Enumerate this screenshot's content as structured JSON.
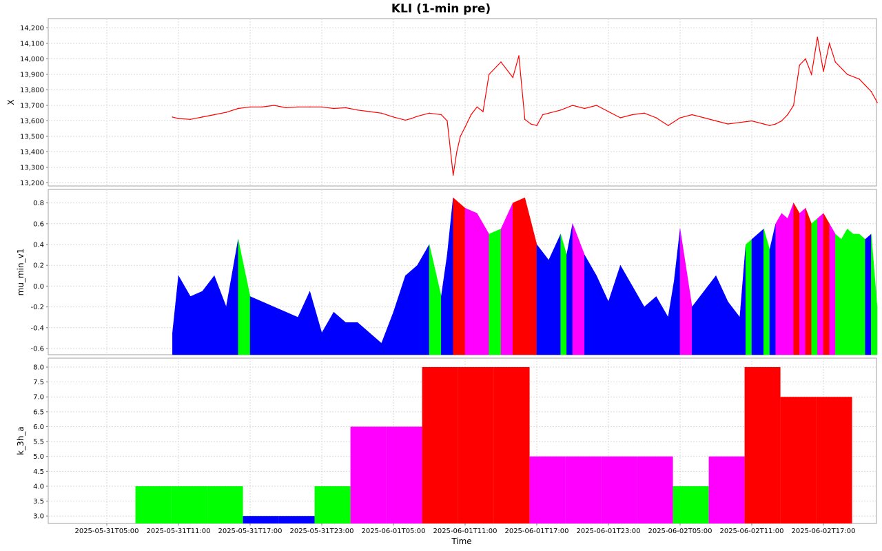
{
  "chart_data": {
    "type": "multi-panel",
    "title": "KLI (1-min pre)",
    "xlabel": "Time",
    "x_ticks": [
      "2025-05-31T05:00",
      "2025-05-31T11:00",
      "2025-05-31T17:00",
      "2025-05-31T23:00",
      "2025-06-01T05:00",
      "2025-06-01T11:00",
      "2025-06-01T17:00",
      "2025-06-01T23:00",
      "2025-06-02T05:00",
      "2025-06-02T11:00",
      "2025-06-02T17:00"
    ],
    "colors": {
      "blue": "#0000ff",
      "green": "#00ff00",
      "magenta": "#ff00ff",
      "red": "#ff0000",
      "line": "#ff0000",
      "grid": "#d9d9d9"
    },
    "panels": [
      {
        "name": "X",
        "ylabel": "X",
        "type": "line",
        "yticks": [
          "13,200",
          "13,300",
          "13,400",
          "13,500",
          "13,600",
          "13,700",
          "13,800",
          "13,900",
          "14,000",
          "14,100",
          "14,200"
        ],
        "ylim": [
          13180,
          14260
        ],
        "x_hours": [
          5.5,
          6,
          7,
          8,
          9,
          10,
          11,
          12,
          13,
          14,
          15,
          16,
          17,
          18,
          19,
          20,
          21,
          22,
          23,
          24,
          25,
          25.5,
          26,
          27,
          28,
          28.5,
          29,
          29.3,
          29.6,
          30,
          30.5,
          31,
          31.5,
          32,
          33,
          34,
          34.5,
          35,
          35.5,
          36,
          36.5,
          37,
          38,
          39,
          40,
          41,
          42,
          43,
          44,
          45,
          46,
          47,
          48,
          49,
          50,
          51,
          52,
          53,
          54,
          54.5,
          55,
          55.5,
          56,
          56.5,
          57,
          57.5,
          58,
          58.5,
          59,
          59.5,
          60,
          60.5,
          61,
          62,
          63,
          63.5,
          64,
          64.5
        ],
        "values": [
          13625,
          13615,
          13610,
          13625,
          13640,
          13655,
          13680,
          13690,
          13690,
          13700,
          13685,
          13690,
          13690,
          13690,
          13680,
          13685,
          13670,
          13660,
          13650,
          13625,
          13605,
          13615,
          13630,
          13650,
          13640,
          13600,
          13250,
          13400,
          13500,
          13560,
          13640,
          13690,
          13660,
          13900,
          13980,
          13880,
          14020,
          13610,
          13580,
          13570,
          13640,
          13650,
          13670,
          13700,
          13680,
          13700,
          13660,
          13620,
          13640,
          13650,
          13620,
          13570,
          13620,
          13640,
          13620,
          13600,
          13580,
          13590,
          13600,
          13590,
          13580,
          13570,
          13580,
          13600,
          13640,
          13700,
          13960,
          14000,
          13900,
          14140,
          13920,
          14100,
          13980,
          13900,
          13870,
          13830,
          13790,
          13720
        ],
        "series_color": "#ff0000"
      },
      {
        "name": "mu_min_v1",
        "ylabel": "mu_min_v1",
        "type": "area",
        "yticks": [
          "-0.6",
          "-0.4",
          "-0.2",
          "0.0",
          "0.2",
          "0.4",
          "0.6",
          "0.8"
        ],
        "ylim": [
          -0.66,
          0.93
        ],
        "x_hours": [
          5.5,
          6,
          7,
          8,
          9,
          10,
          11,
          12,
          13,
          14,
          15,
          16,
          17,
          18,
          19,
          20,
          21,
          22,
          23,
          24,
          25,
          26,
          27,
          28,
          28.5,
          29,
          30,
          31,
          31.5,
          32,
          33,
          34,
          35,
          36,
          37,
          38,
          38.5,
          39,
          40,
          41,
          42,
          43,
          44,
          45,
          46,
          47,
          47.5,
          48,
          49,
          50,
          51,
          52,
          53,
          53.5,
          54,
          55,
          55.5,
          56,
          56.5,
          57,
          57.5,
          58,
          58.5,
          59,
          59.5,
          60,
          60.5,
          61,
          61.5,
          62,
          62.5,
          63,
          63.5,
          64,
          64.5
        ],
        "values": [
          -0.45,
          0.1,
          -0.1,
          -0.05,
          0.1,
          -0.2,
          0.45,
          -0.1,
          -0.15,
          -0.2,
          -0.25,
          -0.3,
          -0.05,
          -0.45,
          -0.25,
          -0.35,
          -0.35,
          -0.45,
          -0.55,
          -0.25,
          0.1,
          0.2,
          0.4,
          -0.1,
          0.3,
          0.85,
          0.75,
          0.7,
          0.6,
          0.5,
          0.55,
          0.8,
          0.85,
          0.4,
          0.25,
          0.5,
          0.3,
          0.6,
          0.3,
          0.1,
          -0.15,
          0.2,
          0.0,
          -0.2,
          -0.1,
          -0.3,
          0.05,
          0.55,
          -0.2,
          -0.05,
          0.1,
          -0.15,
          -0.3,
          0.4,
          0.45,
          0.55,
          0.35,
          0.6,
          0.7,
          0.65,
          0.8,
          0.7,
          0.75,
          0.6,
          0.65,
          0.7,
          0.6,
          0.5,
          0.45,
          0.55,
          0.5,
          0.5,
          0.45,
          0.5,
          -0.2
        ],
        "band_colors": [
          "#0000ff",
          "#0000ff",
          "#0000ff",
          "#0000ff",
          "#0000ff",
          "#0000ff",
          "#00ff00",
          "#0000ff",
          "#0000ff",
          "#0000ff",
          "#0000ff",
          "#0000ff",
          "#0000ff",
          "#0000ff",
          "#0000ff",
          "#0000ff",
          "#0000ff",
          "#0000ff",
          "#0000ff",
          "#0000ff",
          "#0000ff",
          "#0000ff",
          "#00ff00",
          "#0000ff",
          "#0000ff",
          "#ff0000",
          "#ff00ff",
          "#ff00ff",
          "#ff00ff",
          "#00ff00",
          "#ff00ff",
          "#ff0000",
          "#ff0000",
          "#0000ff",
          "#0000ff",
          "#00ff00",
          "#0000ff",
          "#ff00ff",
          "#0000ff",
          "#0000ff",
          "#0000ff",
          "#0000ff",
          "#0000ff",
          "#0000ff",
          "#0000ff",
          "#0000ff",
          "#0000ff",
          "#ff00ff",
          "#0000ff",
          "#0000ff",
          "#0000ff",
          "#0000ff",
          "#0000ff",
          "#00ff00",
          "#0000ff",
          "#00ff00",
          "#0000ff",
          "#ff00ff",
          "#ff00ff",
          "#ff00ff",
          "#ff0000",
          "#ff00ff",
          "#ff0000",
          "#00ff00",
          "#ff00ff",
          "#ff0000",
          "#ff00ff",
          "#00ff00",
          "#00ff00",
          "#00ff00",
          "#00ff00",
          "#00ff00",
          "#0000ff",
          "#00ff00",
          "#0000ff"
        ]
      },
      {
        "name": "k_3h_a",
        "ylabel": "k_3h_a",
        "type": "bar",
        "yticks": [
          "3.0",
          "3.5",
          "4.0",
          "4.5",
          "5.0",
          "5.5",
          "6.0",
          "6.5",
          "7.0",
          "7.5",
          "8.0"
        ],
        "ylim": [
          2.75,
          8.3
        ],
        "bars": [
          {
            "start_hour": 3,
            "value": 4,
            "color": "#00ff00"
          },
          {
            "start_hour": 6,
            "value": 4,
            "color": "#00ff00"
          },
          {
            "start_hour": 9,
            "value": 4,
            "color": "#00ff00"
          },
          {
            "start_hour": 12,
            "value": 3,
            "color": "#0000ff"
          },
          {
            "start_hour": 15,
            "value": 3,
            "color": "#0000ff"
          },
          {
            "start_hour": 18,
            "value": 4,
            "color": "#00ff00"
          },
          {
            "start_hour": 21,
            "value": 6,
            "color": "#ff00ff"
          },
          {
            "start_hour": 24,
            "value": 6,
            "color": "#ff00ff"
          },
          {
            "start_hour": 27,
            "value": 8,
            "color": "#ff0000"
          },
          {
            "start_hour": 30,
            "value": 8,
            "color": "#ff0000"
          },
          {
            "start_hour": 33,
            "value": 8,
            "color": "#ff0000"
          },
          {
            "start_hour": 36,
            "value": 5,
            "color": "#ff00ff"
          },
          {
            "start_hour": 39,
            "value": 5,
            "color": "#ff00ff"
          },
          {
            "start_hour": 42,
            "value": 5,
            "color": "#ff00ff"
          },
          {
            "start_hour": 45,
            "value": 5,
            "color": "#ff00ff"
          },
          {
            "start_hour": 48,
            "value": 4,
            "color": "#00ff00"
          },
          {
            "start_hour": 51,
            "value": 5,
            "color": "#ff00ff"
          },
          {
            "start_hour": 54,
            "value": 8,
            "color": "#ff0000"
          },
          {
            "start_hour": 57,
            "value": 7,
            "color": "#ff0000"
          },
          {
            "start_hour": 60,
            "value": 7,
            "color": "#ff0000"
          }
        ]
      }
    ]
  }
}
